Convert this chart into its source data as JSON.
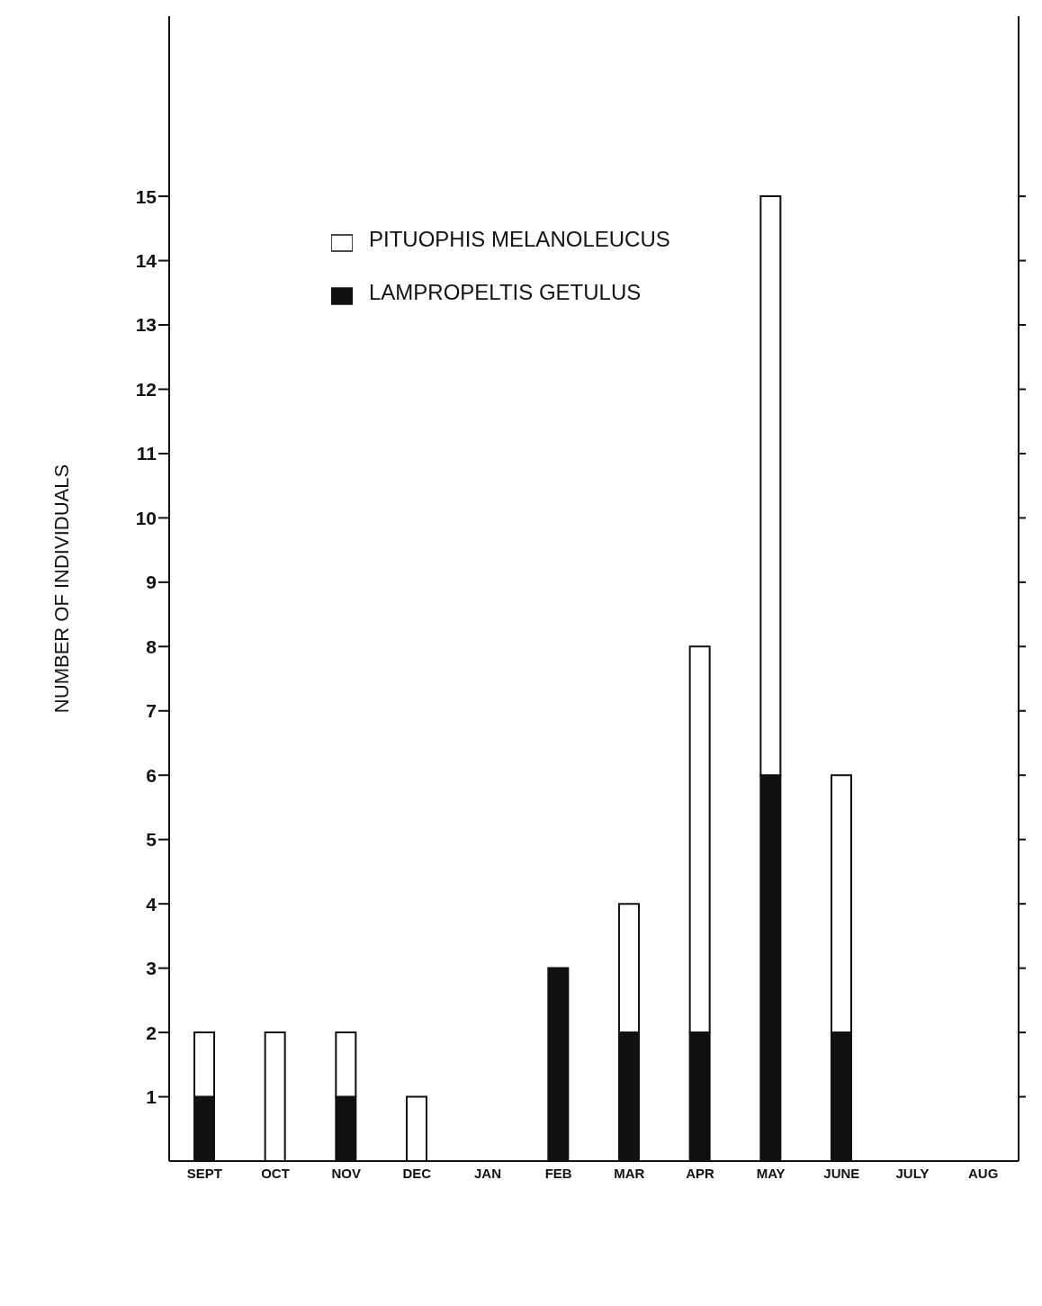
{
  "chart_data": {
    "type": "bar",
    "stacked": true,
    "ylabel": "NUMBER OF INDIVIDUALS",
    "categories": [
      "SEPT",
      "OCT",
      "NOV",
      "DEC",
      "JAN",
      "FEB",
      "MAR",
      "APR",
      "MAY",
      "JUNE",
      "JULY",
      "AUG"
    ],
    "series": [
      {
        "name": "LAMPROPELTIS GETULUS",
        "color": "#111111",
        "values": [
          1,
          0,
          1,
          0,
          0,
          3,
          2,
          2,
          6,
          2,
          0,
          0
        ]
      },
      {
        "name": "PITUOPHIS MELANOLEUCUS",
        "color": "#ffffff",
        "values": [
          1,
          2,
          1,
          1,
          0,
          0,
          2,
          6,
          9,
          4,
          0,
          0
        ]
      }
    ],
    "ylim": [
      0,
      17.8
    ],
    "yticks": [
      1,
      2,
      3,
      4,
      5,
      6,
      7,
      8,
      9,
      10,
      11,
      12,
      13,
      14,
      15
    ],
    "grid": false,
    "legend": "top left"
  }
}
